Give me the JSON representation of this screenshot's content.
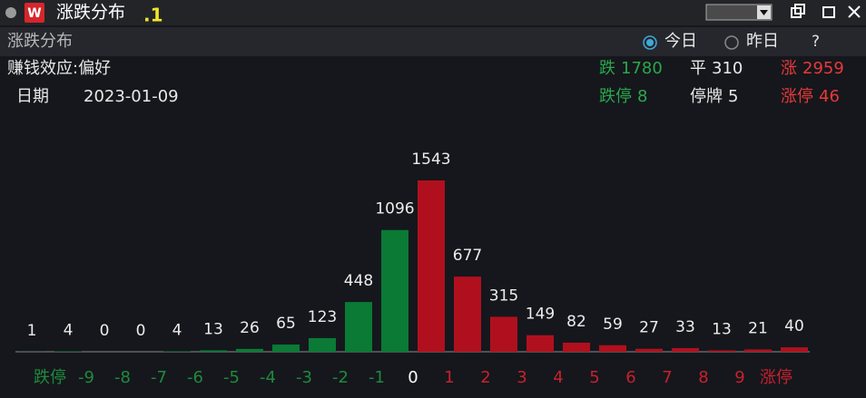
{
  "window": {
    "title": "涨跌分布",
    "tag": ".1"
  },
  "panel": {
    "title": "涨跌分布",
    "options": [
      "今日",
      "昨日"
    ],
    "selected": 0,
    "help": "?"
  },
  "info": {
    "sentiment": "赚钱效应:偏好",
    "date_label": "日期",
    "date": "2023-01-09"
  },
  "stats": [
    {
      "label": "跌",
      "value": 1780,
      "color": "#2aa84a"
    },
    {
      "label": "平",
      "value": 310,
      "color": "#e8e8e8"
    },
    {
      "label": "涨",
      "value": 2959,
      "color": "#e8393a"
    },
    {
      "label": "跌停",
      "value": 8,
      "color": "#2aa84a"
    },
    {
      "label": "停牌",
      "value": 5,
      "color": "#e8e8e8"
    },
    {
      "label": "涨停",
      "value": 46,
      "color": "#e8393a"
    }
  ],
  "chart_data": {
    "type": "histogram",
    "bins": [
      null,
      "跌停",
      "-9",
      "-8",
      "-7",
      "-6",
      "-5",
      "-4",
      "-3",
      "-2",
      "-1",
      "0",
      "1",
      "2",
      "3",
      "4",
      "5",
      "6",
      "7",
      "8",
      "9",
      "涨停",
      null
    ],
    "bin_colors": [
      null,
      "#1e8a3c",
      "#1e8a3c",
      "#1e8a3c",
      "#1e8a3c",
      "#1e8a3c",
      "#1e8a3c",
      "#1e8a3c",
      "#1e8a3c",
      "#1e8a3c",
      "#1e8a3c",
      "#ffffff",
      "#c8202e",
      "#c8202e",
      "#c8202e",
      "#c8202e",
      "#c8202e",
      "#c8202e",
      "#c8202e",
      "#c8202e",
      "#c8202e",
      "#c8202e",
      null
    ],
    "values": [
      1,
      4,
      0,
      0,
      4,
      13,
      26,
      65,
      123,
      448,
      1096,
      1543,
      677,
      315,
      149,
      82,
      59,
      27,
      33,
      13,
      21,
      40
    ],
    "colors": [
      "#0a7a35",
      "#0a7a35",
      "#0a7a35",
      "#0a7a35",
      "#0a7a35",
      "#0a7a35",
      "#0a7a35",
      "#0a7a35",
      "#0a7a35",
      "#0a7a35",
      "#0a7a35",
      "#b0101e",
      "#b0101e",
      "#b0101e",
      "#b0101e",
      "#b0101e",
      "#b0101e",
      "#b0101e",
      "#b0101e",
      "#b0101e",
      "#b0101e",
      "#b0101e"
    ],
    "ylim": [
      0,
      1600
    ]
  }
}
